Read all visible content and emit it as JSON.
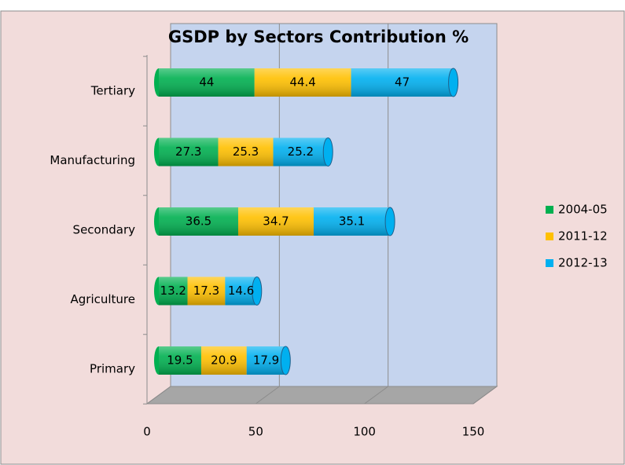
{
  "chart_data": {
    "type": "bar",
    "orientation": "horizontal",
    "stacked": true,
    "title": "GSDP by Sectors Contribution %",
    "categories": [
      "Tertiary",
      "Manufacturing",
      "Secondary",
      "Agriculture",
      "Primary"
    ],
    "series": [
      {
        "name": "2004-05",
        "color": "#00b050",
        "values": [
          44,
          27.3,
          36.5,
          13.2,
          19.5
        ]
      },
      {
        "name": "2011-12",
        "color": "#ffc000",
        "values": [
          44.4,
          25.3,
          34.7,
          17.3,
          20.9
        ]
      },
      {
        "name": "2012-13",
        "color": "#00b0f0",
        "values": [
          47,
          25.2,
          35.1,
          14.6,
          17.9
        ]
      }
    ],
    "xlim": [
      0,
      150
    ],
    "xticks": [
      0,
      50,
      100,
      150
    ],
    "grid": true,
    "legend": "right"
  }
}
